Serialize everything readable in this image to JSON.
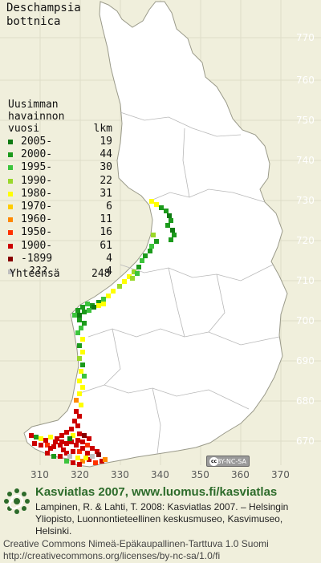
{
  "species": {
    "line1": "Deschampsia",
    "line2": "bottnica"
  },
  "legend": {
    "heading": [
      "Uusimman",
      "havainnon"
    ],
    "col_period": "vuosi",
    "col_count": "lkm",
    "rows": [
      {
        "period": "2005-",
        "count": "19",
        "color": "#0f7a12"
      },
      {
        "period": "2000-",
        "count": "44",
        "color": "#1c9a1c"
      },
      {
        "period": "1995-",
        "count": "30",
        "color": "#3cc43c"
      },
      {
        "period": "1990-",
        "count": "22",
        "color": "#9ad82a"
      },
      {
        "period": "1980-",
        "count": "31",
        "color": "#ffff00"
      },
      {
        "period": "1970-",
        "count": "6",
        "color": "#ffcc00"
      },
      {
        "period": "1960-",
        "count": "11",
        "color": "#ff8800"
      },
      {
        "period": "1950-",
        "count": "16",
        "color": "#ff3300"
      },
      {
        "period": "1900-",
        "count": "61",
        "color": "#cc0000"
      },
      {
        "period": "-1899",
        "count": "4",
        "color": "#880000"
      },
      {
        "period": "???",
        "count": "4",
        "color": "#c0c0c0"
      }
    ],
    "total_label": "Yhteensä",
    "total_value": "248"
  },
  "grid": {
    "lat_labels": [
      "770",
      "760",
      "750",
      "740",
      "730",
      "720",
      "710",
      "700",
      "690",
      "680",
      "670"
    ],
    "lon_labels": [
      "310",
      "320",
      "330",
      "340",
      "350",
      "360",
      "370"
    ]
  },
  "colors": {
    "land": "#ffffff",
    "sea": "#f0efdc",
    "grid_line": "#dedcc8",
    "province_border": "#b8b8b8",
    "brand_green": "#2c6b2a"
  },
  "badge": {
    "text": "BY-NC-SA",
    "icon": "cc-icon"
  },
  "footer": {
    "title": "Kasviatlas 2007, www.luomus.fi/kasviatlas",
    "citation": "Lampinen, R. & Lahti, T. 2008: Kasviatlas 2007. – Helsingin Yliopisto, Luonnontieteellinen keskusmuseo, Kasvimuseo, Helsinki.",
    "license": "Creative Commons Nimeä-Epäkaupallinen-Tarttuva 1.0 Suomi http://creativecommons.org/licenses/by-nc-sa/1.0/fi",
    "logo_icon": "spiral-logo-icon"
  }
}
